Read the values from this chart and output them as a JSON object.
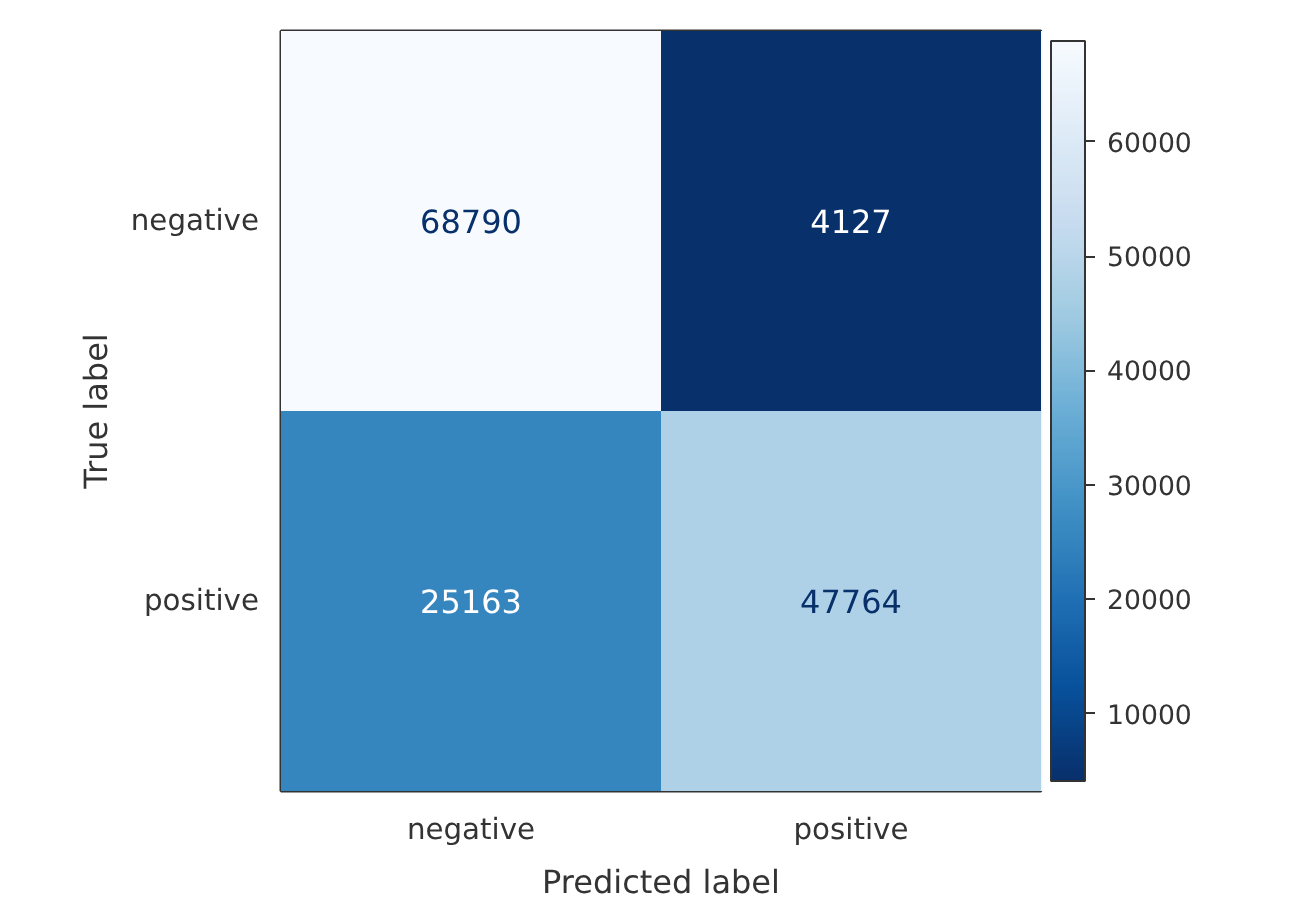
{
  "chart_data": {
    "type": "heatmap",
    "xlabel": "Predicted label",
    "ylabel": "True label",
    "categories": [
      "negative",
      "positive"
    ],
    "y_categories": [
      "negative",
      "positive"
    ],
    "cells": [
      [
        68790,
        4127
      ],
      [
        25163,
        47764
      ]
    ],
    "clim": [
      4127,
      68790
    ],
    "cticks": [
      10000,
      20000,
      30000,
      40000,
      50000,
      60000
    ],
    "data_labels": true
  }
}
